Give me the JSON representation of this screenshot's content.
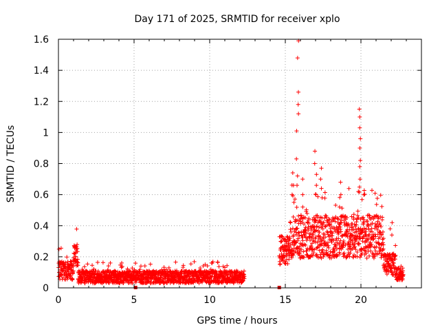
{
  "chart_data": {
    "type": "scatter",
    "title": "Day 171 of 2025, SRMTID for receiver xplo",
    "xlabel": "GPS time / hours",
    "ylabel": "SRMTID / TECUs",
    "xlim": [
      0,
      24
    ],
    "ylim": [
      0,
      1.6
    ],
    "x_ticks": [
      0,
      5,
      10,
      15,
      20
    ],
    "x_tick_labels": [
      "0",
      "5",
      "10",
      "15",
      "20"
    ],
    "y_ticks": [
      0,
      0.2,
      0.4,
      0.6,
      0.8,
      1,
      1.2,
      1.4,
      1.6
    ],
    "y_tick_labels": [
      "0",
      "0.2",
      "0.4",
      "0.6",
      "0.8",
      "1",
      "1.2",
      "1.4",
      "1.6"
    ],
    "grid": true,
    "marker": "+",
    "colors": {
      "points": "#ff0000",
      "gaps": "#cc0000",
      "grid": "#a0a0a0",
      "axis": "#000000"
    },
    "data_gap_markers": [
      5.1,
      14.6
    ],
    "series": [
      {
        "name": "SRMTID",
        "segments": [
          {
            "x_start": 0.0,
            "x_end": 1.0,
            "base": 0.11,
            "spread": 0.06
          },
          {
            "x_start": 1.0,
            "x_end": 1.3,
            "base": 0.21,
            "spread": 0.07
          },
          {
            "x_start": 1.3,
            "x_end": 12.3,
            "base": 0.07,
            "spread": 0.04
          },
          {
            "x_start": 14.6,
            "x_end": 15.3,
            "base": 0.24,
            "spread": 0.09
          },
          {
            "x_start": 15.3,
            "x_end": 21.5,
            "base": 0.33,
            "spread": 0.14
          },
          {
            "x_start": 21.5,
            "x_end": 22.3,
            "base": 0.15,
            "spread": 0.07
          },
          {
            "x_start": 22.3,
            "x_end": 22.8,
            "base": 0.09,
            "spread": 0.04
          }
        ],
        "spikes": [
          {
            "x": 15.8,
            "values": [
              1.59,
              1.48,
              1.26,
              1.18,
              1.12,
              1.01,
              0.83,
              0.72,
              0.66
            ]
          },
          {
            "x": 15.5,
            "values": [
              0.74,
              0.66,
              0.6,
              0.55
            ]
          },
          {
            "x": 16.1,
            "values": [
              0.7,
              0.6,
              0.52
            ]
          },
          {
            "x": 17.0,
            "values": [
              0.88,
              0.8,
              0.73,
              0.66,
              0.6
            ]
          },
          {
            "x": 17.4,
            "values": [
              0.77,
              0.7,
              0.64,
              0.58
            ]
          },
          {
            "x": 18.6,
            "values": [
              0.68,
              0.6,
              0.52
            ]
          },
          {
            "x": 19.9,
            "values": [
              1.15,
              1.1,
              1.03,
              0.96,
              0.9,
              0.82,
              0.78,
              0.7,
              0.62
            ]
          },
          {
            "x": 22.0,
            "values": [
              0.42,
              0.38,
              0.34
            ]
          }
        ]
      }
    ]
  }
}
